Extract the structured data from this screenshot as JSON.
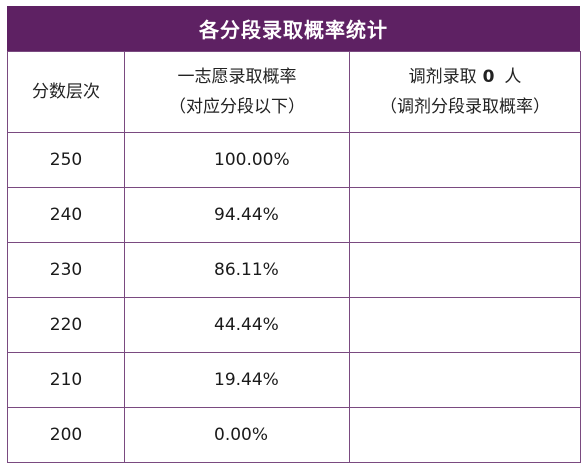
{
  "title": "各分段录取概率统计",
  "header": {
    "col1": "分数层次",
    "col2_line1": "一志愿录取概率",
    "col2_line2": "（对应分段以下）",
    "col3_prefix": "调剂录取",
    "col3_count": "0",
    "col3_suffix": "人",
    "col3_line2": "（调剂分段录取概率）"
  },
  "rows": [
    {
      "score": "250",
      "rate": "100.00%",
      "adjust": ""
    },
    {
      "score": "240",
      "rate": "94.44%",
      "adjust": ""
    },
    {
      "score": "230",
      "rate": "86.11%",
      "adjust": ""
    },
    {
      "score": "220",
      "rate": "44.44%",
      "adjust": ""
    },
    {
      "score": "210",
      "rate": "19.44%",
      "adjust": ""
    },
    {
      "score": "200",
      "rate": "0.00%",
      "adjust": ""
    }
  ],
  "colors": {
    "title_bg": "#5e2163",
    "title_text": "#ffffff",
    "border": "#7a4a80"
  }
}
